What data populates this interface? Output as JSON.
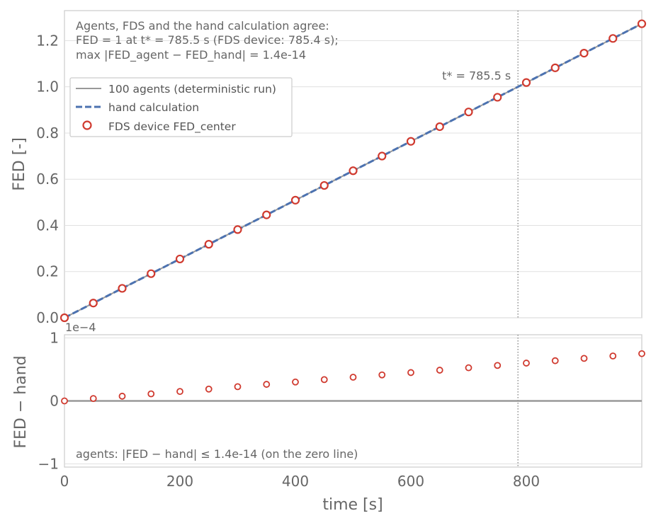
{
  "chart_data": [
    {
      "type": "line",
      "ylabel": "FED [-]",
      "xlim": [
        0,
        1000
      ],
      "ylim": [
        0,
        1.33
      ],
      "xticks": [
        0,
        200,
        400,
        600,
        800
      ],
      "yticks": [
        0.0,
        0.2,
        0.4,
        0.6,
        0.8,
        1.0,
        1.2
      ],
      "ytick_labels": [
        "0.0",
        "0.2",
        "0.4",
        "0.6",
        "0.8",
        "1.0",
        "1.2"
      ],
      "grid": true,
      "annotation_lines": [
        "Agents, FDS and the hand calculation agree:",
        "FED = 1 at t* = 785.5 s (FDS device: 785.4 s);",
        "max |FED_agent − FED_hand| = 1.4e-14"
      ],
      "tstar_label": "t* = 785.5 s",
      "tstar": 785.5,
      "legend_position": "upper-left",
      "series": [
        {
          "name": "100 agents (deterministic run)",
          "style": "solid",
          "color": "#999999",
          "x": [
            0,
            1000
          ],
          "y": [
            0,
            1.2731
          ]
        },
        {
          "name": "hand calculation",
          "style": "dashed",
          "color": "#4c72b0",
          "x": [
            0,
            1000
          ],
          "y": [
            0,
            1.2731
          ]
        },
        {
          "name": "FDS device FED_center",
          "style": "markers",
          "color": "#d03a2f",
          "x": [
            0,
            50,
            100,
            150,
            200,
            250,
            300,
            350,
            400,
            450,
            500,
            550,
            600,
            650,
            700,
            750,
            800,
            850,
            900,
            950,
            1000
          ],
          "y": [
            0.0,
            0.0637,
            0.1273,
            0.191,
            0.2546,
            0.3183,
            0.3819,
            0.4456,
            0.5092,
            0.5729,
            0.6366,
            0.7002,
            0.7639,
            0.8275,
            0.8912,
            0.9548,
            1.0185,
            1.0822,
            1.1458,
            1.2095,
            1.2731
          ]
        }
      ]
    },
    {
      "type": "scatter",
      "ylabel": "FED − hand",
      "xlabel": "time [s]",
      "scale_label": "1e−4",
      "xlim": [
        0,
        1000
      ],
      "ylim": [
        -1.05,
        1.05
      ],
      "xticks": [
        0,
        200,
        400,
        600,
        800
      ],
      "yticks": [
        -1,
        0,
        1
      ],
      "ytick_labels": [
        "−1",
        "0",
        "1"
      ],
      "grid": true,
      "annotation": "agents: |FED − hand| ≤ 1.4e-14 (on the zero line)",
      "tstar": 785.5,
      "series": [
        {
          "name": "",
          "color": "#d03a2f",
          "x": [
            0,
            50,
            100,
            150,
            200,
            250,
            300,
            350,
            400,
            450,
            500,
            550,
            600,
            650,
            700,
            750,
            800,
            850,
            900,
            950,
            1000
          ],
          "y": [
            0.0,
            0.038,
            0.075,
            0.112,
            0.15,
            0.188,
            0.226,
            0.263,
            0.3,
            0.338,
            0.376,
            0.413,
            0.45,
            0.488,
            0.526,
            0.563,
            0.6,
            0.638,
            0.675,
            0.713,
            0.75
          ]
        },
        {
          "name": "",
          "color": "#999999",
          "x": [
            0,
            1000
          ],
          "y": [
            0,
            0
          ]
        }
      ]
    }
  ]
}
